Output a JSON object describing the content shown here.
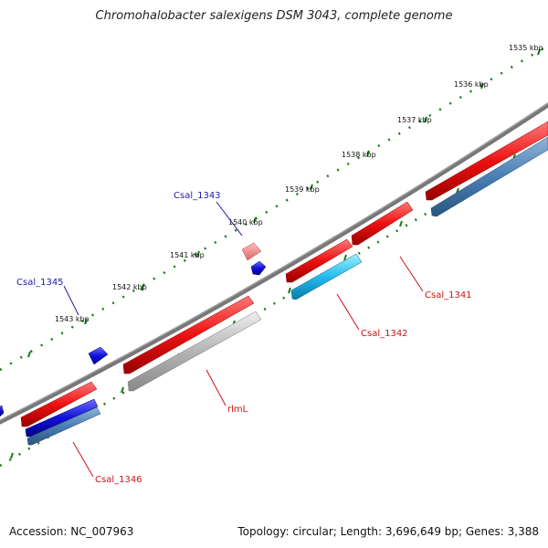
{
  "title": "Chromohalobacter salexigens DSM 3043, complete genome",
  "footer": {
    "accession": "Accession: NC_007963",
    "stats": "Topology: circular; Length: 3,696,649 bp; Genes: 3,388"
  },
  "ticks": [
    "1535 kbp",
    "1536 kbp",
    "1537 kbp",
    "1538 kbp",
    "1539 kbp",
    "1540 kbp",
    "1541 kbp",
    "1542 kbp",
    "1543 kbp"
  ],
  "labels": {
    "csal_1341": "Csal_1341",
    "csal_1342": "Csal_1342",
    "csal_1343": "Csal_1343",
    "csal_1345": "Csal_1345",
    "csal_1346": "Csal_1346",
    "rlml": "rlmL"
  },
  "colors": {
    "cds": "#ee1111",
    "gene_steel": "#4a7fb5",
    "gene_cyan": "#22bbee",
    "gene_grey": "#b4b4b4",
    "gene_blue": "#1111dd",
    "backbone": "#777777",
    "tick": "#1a7a1a",
    "label_blue": "#1a1aaa",
    "label_red": "#cc1111"
  }
}
